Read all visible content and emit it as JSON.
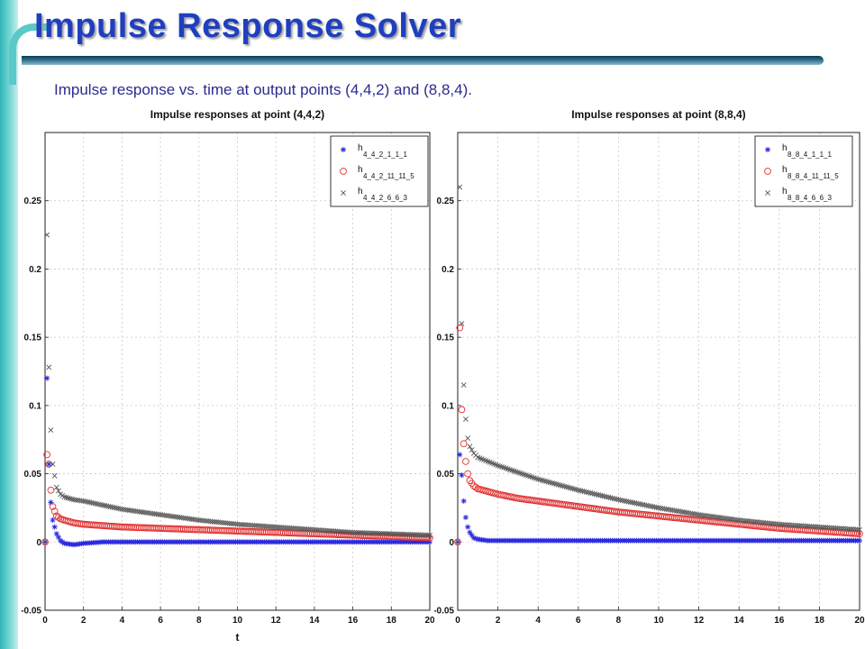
{
  "slide": {
    "title": "Impulse Response Solver",
    "subtitle": "Impulse response vs. time at output points (4,4,2) and (8,8,4)."
  },
  "colors": {
    "accent_bar": "#2fb6b8",
    "title": "#1f3fbf",
    "series_blue": "#2a2adf",
    "series_red": "#e03030",
    "series_black": "#555555"
  },
  "chart_data": [
    {
      "type": "scatter",
      "title": "Impulse responses at point (4,4,2)",
      "xlabel": "t",
      "ylabel": "",
      "xlim": [
        0,
        20
      ],
      "ylim": [
        -0.05,
        0.3
      ],
      "xticks": [
        0,
        2,
        4,
        6,
        8,
        10,
        12,
        14,
        16,
        18,
        20
      ],
      "yticks": [
        -0.05,
        0,
        0.05,
        0.1,
        0.15,
        0.2,
        0.25
      ],
      "ytick_labels": [
        "-0.05",
        "0",
        "0.05",
        "0.1",
        "0.15",
        "0.2",
        "0.25"
      ],
      "grid": true,
      "legend_position": "top-right",
      "series": [
        {
          "name_main": "h",
          "name_sub": "4_4_2_1_1_1",
          "marker": "star",
          "color": "#2a2adf",
          "x": [
            0,
            0.1,
            0.2,
            0.3,
            0.4,
            0.6,
            0.8,
            1.0,
            1.5,
            2.0,
            3.0,
            4.0,
            6.0,
            8.0,
            10.0,
            12.0,
            14.0,
            16.0,
            18.0,
            20.0
          ],
          "y": [
            0,
            0.12,
            0.057,
            0.029,
            0.016,
            0.006,
            0.001,
            -0.001,
            -0.002,
            -0.001,
            0.0,
            0.0,
            0.0,
            0.0,
            0.0,
            0.0,
            0.0,
            0.0,
            0.0,
            0.0
          ]
        },
        {
          "name_main": "h",
          "name_sub": "4_4_2_11_11_5",
          "marker": "circle",
          "color": "#e03030",
          "x": [
            0,
            0.1,
            0.2,
            0.3,
            0.4,
            0.6,
            0.8,
            1.0,
            1.5,
            2.0,
            3.0,
            4.0,
            6.0,
            8.0,
            10.0,
            12.0,
            14.0,
            16.0,
            18.0,
            20.0
          ],
          "y": [
            0,
            0.064,
            0.057,
            0.038,
            0.026,
            0.019,
            0.017,
            0.016,
            0.014,
            0.013,
            0.012,
            0.011,
            0.01,
            0.009,
            0.008,
            0.007,
            0.006,
            0.005,
            0.004,
            0.003
          ]
        },
        {
          "name_main": "h",
          "name_sub": "4_4_2_6_6_3",
          "marker": "x",
          "color": "#555555",
          "x": [
            0,
            0.1,
            0.2,
            0.3,
            0.4,
            0.6,
            0.8,
            1.0,
            1.5,
            2.0,
            3.0,
            4.0,
            6.0,
            8.0,
            10.0,
            12.0,
            14.0,
            16.0,
            18.0,
            20.0
          ],
          "y": [
            0,
            0.225,
            0.128,
            0.082,
            0.057,
            0.04,
            0.035,
            0.033,
            0.031,
            0.03,
            0.027,
            0.024,
            0.02,
            0.016,
            0.013,
            0.011,
            0.009,
            0.007,
            0.006,
            0.005
          ]
        }
      ]
    },
    {
      "type": "scatter",
      "title": "Impulse responses at point (8,8,4)",
      "xlabel": "",
      "ylabel": "",
      "xlim": [
        0,
        20
      ],
      "ylim": [
        -0.05,
        0.3
      ],
      "xticks": [
        0,
        2,
        4,
        6,
        8,
        10,
        12,
        14,
        16,
        18,
        20
      ],
      "yticks": [
        -0.05,
        0,
        0.05,
        0.1,
        0.15,
        0.2,
        0.25
      ],
      "ytick_labels": [
        "-0.05",
        "0",
        "0.05",
        "0.1",
        "0.15",
        "0.2",
        "0.25"
      ],
      "grid": true,
      "legend_position": "top-right",
      "series": [
        {
          "name_main": "h",
          "name_sub": "8_8_4_1_1_1",
          "marker": "star",
          "color": "#2a2adf",
          "x": [
            0,
            0.1,
            0.2,
            0.3,
            0.4,
            0.5,
            0.6,
            0.8,
            1.0,
            1.5,
            2.0,
            3.0,
            4.0,
            6.0,
            8.0,
            10.0,
            12.0,
            14.0,
            16.0,
            18.0,
            20.0
          ],
          "y": [
            0,
            0.064,
            0.049,
            0.03,
            0.018,
            0.011,
            0.007,
            0.003,
            0.002,
            0.001,
            0.001,
            0.001,
            0.001,
            0.001,
            0.001,
            0.001,
            0.001,
            0.001,
            0.001,
            0.001,
            0.001
          ]
        },
        {
          "name_main": "h",
          "name_sub": "8_8_4_11_11_5",
          "marker": "circle",
          "color": "#e03030",
          "x": [
            0,
            0.1,
            0.2,
            0.3,
            0.4,
            0.5,
            0.6,
            0.8,
            1.0,
            1.5,
            2.0,
            3.0,
            4.0,
            6.0,
            8.0,
            10.0,
            12.0,
            14.0,
            16.0,
            18.0,
            20.0
          ],
          "y": [
            0,
            0.157,
            0.097,
            0.072,
            0.059,
            0.05,
            0.045,
            0.041,
            0.039,
            0.037,
            0.035,
            0.032,
            0.03,
            0.026,
            0.022,
            0.019,
            0.016,
            0.013,
            0.01,
            0.008,
            0.006
          ]
        },
        {
          "name_main": "h",
          "name_sub": "8_8_4_6_6_3",
          "marker": "x",
          "color": "#555555",
          "x": [
            0,
            0.1,
            0.2,
            0.3,
            0.4,
            0.5,
            0.6,
            0.8,
            1.0,
            1.5,
            2.0,
            3.0,
            4.0,
            6.0,
            8.0,
            10.0,
            12.0,
            14.0,
            16.0,
            18.0,
            20.0
          ],
          "y": [
            0,
            0.26,
            0.16,
            0.115,
            0.09,
            0.076,
            0.07,
            0.065,
            0.062,
            0.059,
            0.056,
            0.051,
            0.046,
            0.038,
            0.031,
            0.025,
            0.02,
            0.016,
            0.013,
            0.011,
            0.009
          ]
        }
      ]
    }
  ]
}
